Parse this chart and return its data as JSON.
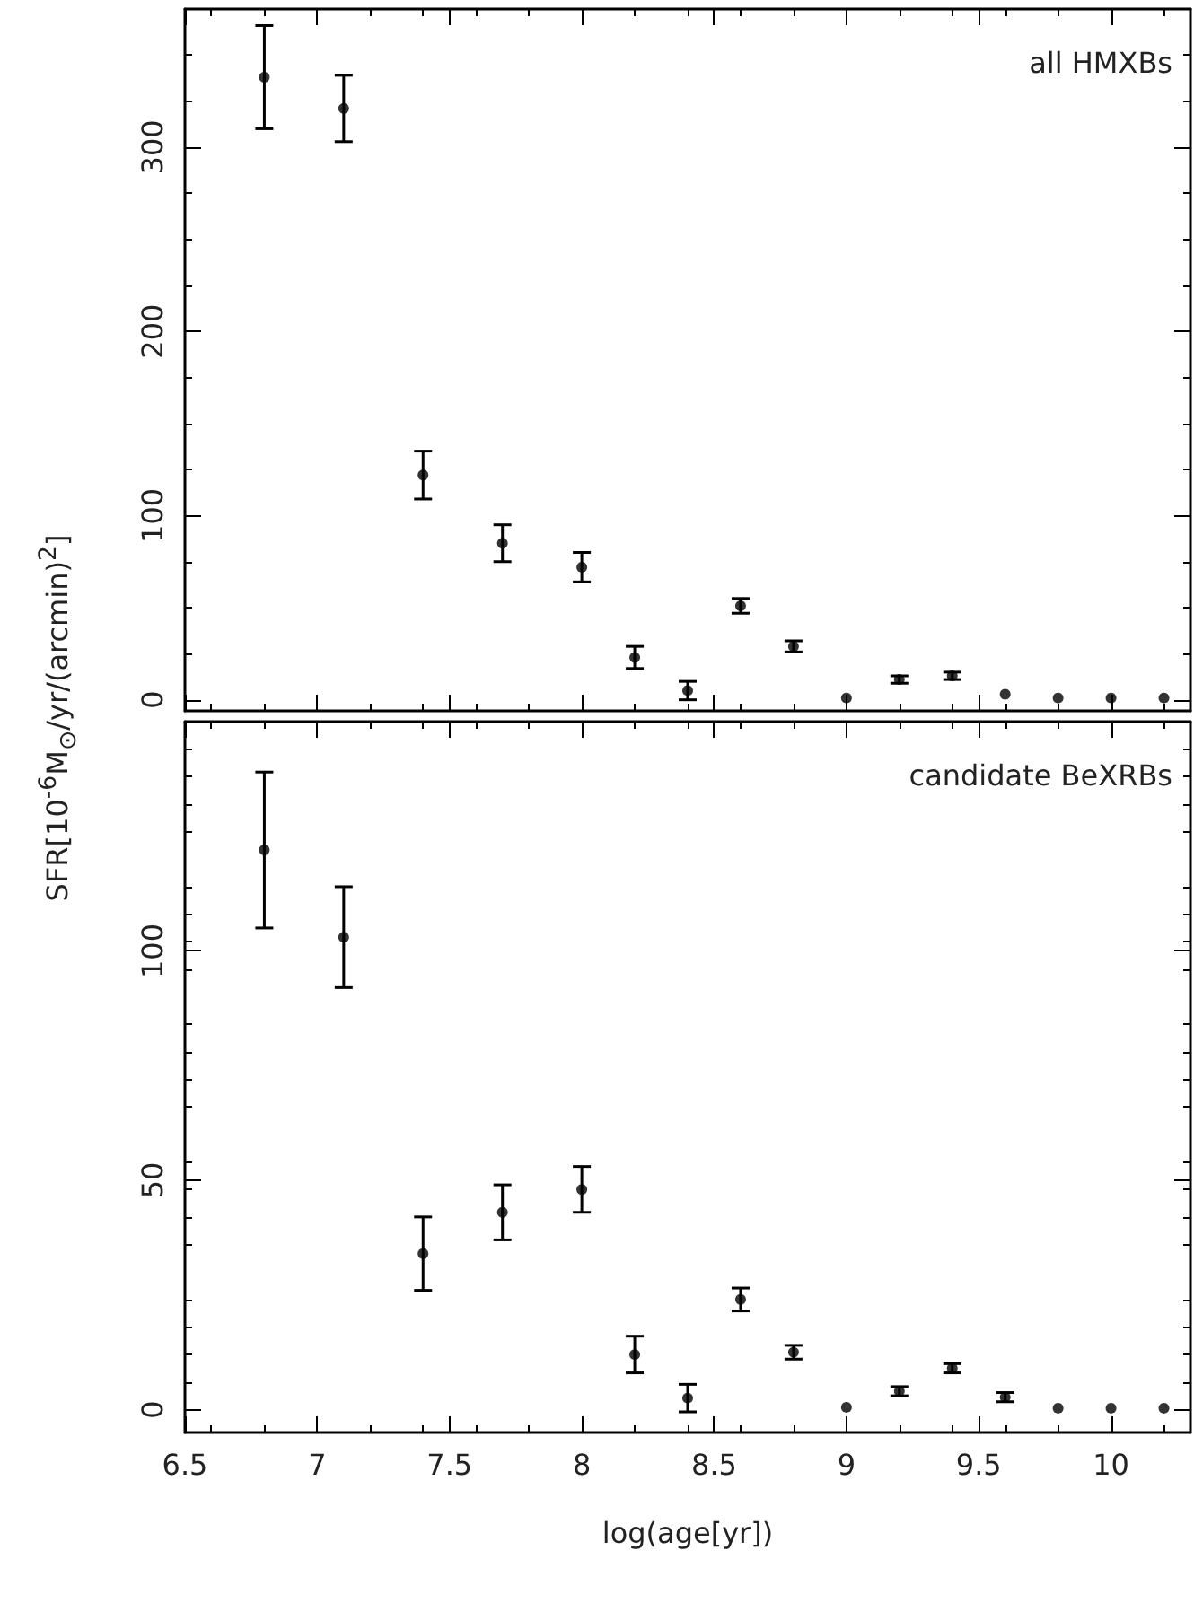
{
  "chart_data": [
    {
      "type": "scatter",
      "ylabel": "SFR[10$^{-6}$M$_{⊙}$/yr/(arcmin)$^{2}$]",
      "annotations": [
        "all HMXBs"
      ],
      "x": [
        6.8,
        7.1,
        7.4,
        7.7,
        8.0,
        8.2,
        8.4,
        8.6,
        8.8,
        9.0,
        9.2,
        9.4,
        9.6,
        9.8,
        10.0,
        10.2
      ],
      "values": [
        338,
        321,
        122,
        85,
        72,
        23,
        5,
        51,
        29,
        1,
        11,
        13,
        3,
        1,
        1,
        1
      ],
      "errors": [
        28,
        18,
        13,
        10,
        8,
        6,
        5,
        4,
        3,
        null,
        2,
        2,
        null,
        null,
        null,
        null
      ],
      "color": "#000000",
      "marker": "circle",
      "xlim": [
        6.5,
        10.3
      ],
      "xticks": [
        6.5,
        7,
        7.5,
        8,
        8.5,
        9,
        9.5,
        10
      ],
      "ylim": [
        -6,
        375
      ],
      "yticks": [
        0,
        100,
        200,
        300
      ],
      "tick_labels": "y",
      "grid": false
    },
    {
      "type": "scatter",
      "xlabel": "log(age[yr])",
      "annotations": [
        "candidate BeXRBs"
      ],
      "x": [
        6.8,
        7.1,
        7.4,
        7.7,
        8.0,
        8.2,
        8.4,
        8.6,
        8.8,
        9.0,
        9.2,
        9.4,
        9.6,
        9.8,
        10.0,
        10.2
      ],
      "values": [
        122,
        103,
        34,
        43,
        48,
        12,
        2.5,
        24,
        12.5,
        0.5,
        4,
        9,
        2.7,
        0.3,
        0.3,
        0.3
      ],
      "errors": [
        17,
        11,
        8,
        6,
        5,
        4,
        3,
        2.5,
        1.5,
        null,
        1,
        1,
        1,
        null,
        null,
        null
      ],
      "color": "#000000",
      "marker": "circle",
      "xlim": [
        6.5,
        10.3
      ],
      "xticks": [
        6.5,
        7,
        7.5,
        8,
        8.5,
        9,
        9.5,
        10
      ],
      "ylim": [
        -5,
        150
      ],
      "yticks": [
        0,
        50,
        100
      ],
      "grid": false
    }
  ]
}
